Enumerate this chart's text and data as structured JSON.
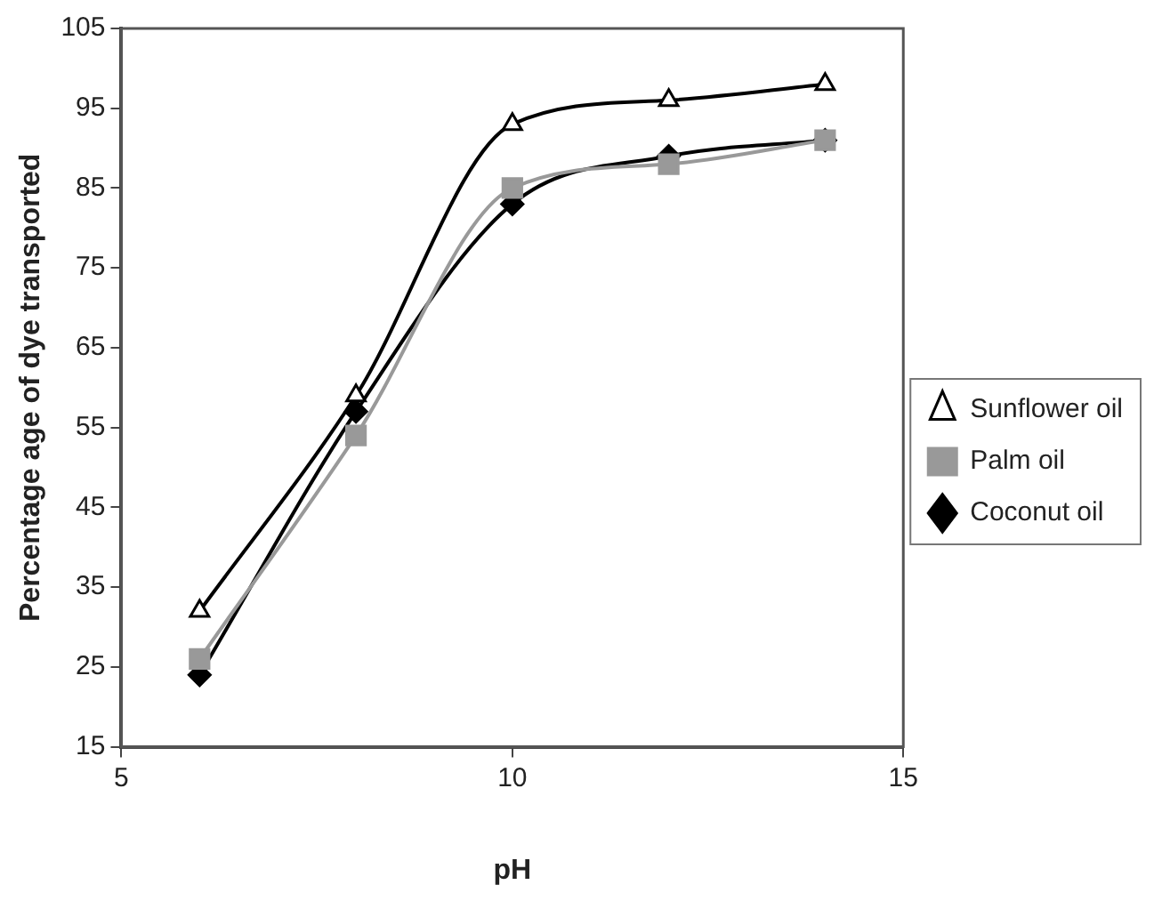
{
  "chart_data": {
    "type": "line",
    "xlabel": "pH",
    "ylabel": "Percentage age of dye transported",
    "x": [
      6,
      8,
      10,
      12,
      14
    ],
    "series": [
      {
        "name": "Coconut oil",
        "color": "#000000",
        "marker": "diamond",
        "values": [
          24,
          57,
          83,
          89,
          91
        ]
      },
      {
        "name": "Palm oil",
        "color": "#999999",
        "marker": "square",
        "values": [
          26,
          54,
          85,
          88,
          91
        ]
      },
      {
        "name": "Sunflower oil",
        "color": "#000000",
        "marker": "triangle",
        "values": [
          32,
          59,
          93,
          96,
          98
        ]
      }
    ],
    "xlim": [
      5,
      15
    ],
    "xticks": [
      5,
      10,
      15
    ],
    "ylim": [
      15,
      105
    ],
    "yticks": [
      15,
      25,
      35,
      45,
      55,
      65,
      75,
      85,
      95,
      105
    ],
    "grid": false,
    "legend": "right",
    "line_style": "solid"
  }
}
